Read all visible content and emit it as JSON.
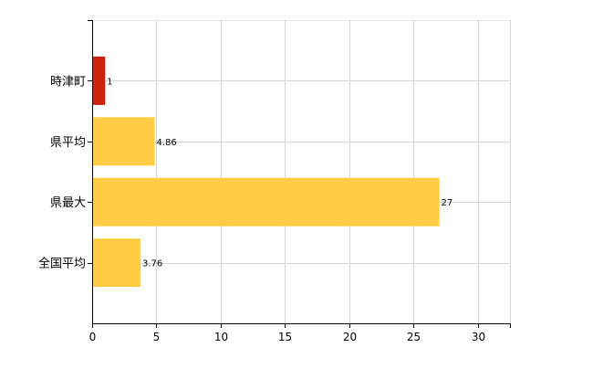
{
  "chart_data": {
    "type": "bar",
    "orientation": "horizontal",
    "categories": [
      "時津町",
      "県平均",
      "県最大",
      "全国平均"
    ],
    "values": [
      1,
      4.86,
      27,
      3.76
    ],
    "value_labels": [
      "1",
      "4.86",
      "27",
      "3.76"
    ],
    "bar_colors": [
      "#cc2211",
      "#ffcc44",
      "#ffcc44",
      "#ffcc44"
    ],
    "xlim": [
      0,
      32.5
    ],
    "x_ticks": [
      0,
      5,
      10,
      15,
      20,
      25,
      30
    ],
    "x_tick_labels": [
      "0",
      "5",
      "10",
      "15",
      "20",
      "25",
      "30"
    ],
    "grid": true,
    "title": "",
    "xlabel": "",
    "ylabel": ""
  },
  "colors": {
    "grid": "#d4d4d4",
    "axis": "#000000",
    "text": "#000000"
  }
}
